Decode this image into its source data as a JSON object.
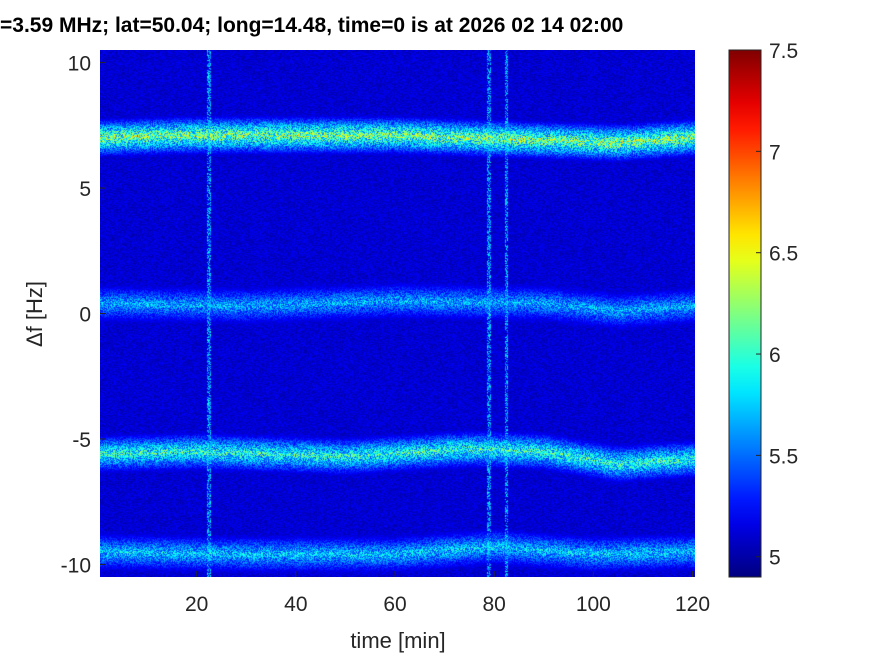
{
  "chart_data": {
    "type": "heatmap",
    "title": "=3.59 MHz;  lat=50.04; long=14.48, time=0 is at 2026 02 14 02:00",
    "xlabel": "time [min]",
    "ylabel": "Δf [Hz]",
    "xlim": [
      0.5,
      120.5
    ],
    "ylim": [
      -10.5,
      10.5
    ],
    "xticks": [
      "20",
      "40",
      "60",
      "80",
      "100",
      "120"
    ],
    "yticks": [
      "10",
      "5",
      "0",
      "-5",
      "-10"
    ],
    "xtick_values": [
      20,
      40,
      60,
      80,
      100,
      120
    ],
    "ytick_values": [
      10,
      5,
      0,
      -5,
      -10
    ],
    "colorbar": {
      "range": [
        4.9,
        7.5
      ],
      "ticks": [
        "7.5",
        "7",
        "6.5",
        "6",
        "5.5",
        "5"
      ],
      "tick_values": [
        7.5,
        7,
        6.5,
        6,
        5.5,
        5
      ],
      "colormap": "jet"
    },
    "traces": [
      {
        "center": [
          [
            0,
            7.0
          ],
          [
            20,
            7.1
          ],
          [
            60,
            7.1
          ],
          [
            90,
            6.9
          ],
          [
            105,
            6.8
          ],
          [
            120,
            7.0
          ]
        ],
        "peak": 6.6
      },
      {
        "center": [
          [
            0,
            0.4
          ],
          [
            30,
            0.3
          ],
          [
            60,
            0.5
          ],
          [
            90,
            0.4
          ],
          [
            105,
            0.1
          ],
          [
            120,
            0.3
          ]
        ],
        "peak": 5.9
      },
      {
        "center": [
          [
            0,
            -5.6
          ],
          [
            20,
            -5.5
          ],
          [
            50,
            -5.7
          ],
          [
            75,
            -5.4
          ],
          [
            90,
            -5.5
          ],
          [
            105,
            -6.0
          ],
          [
            120,
            -5.8
          ]
        ],
        "peak": 6.3
      },
      {
        "center": [
          [
            0,
            -9.5
          ],
          [
            30,
            -9.6
          ],
          [
            60,
            -9.6
          ],
          [
            80,
            -9.3
          ],
          [
            100,
            -9.6
          ],
          [
            120,
            -9.5
          ]
        ],
        "peak": 6.0
      }
    ],
    "vertical_streaks_min": [
      22.5,
      79,
      82.5
    ],
    "background_level": 5.0
  }
}
